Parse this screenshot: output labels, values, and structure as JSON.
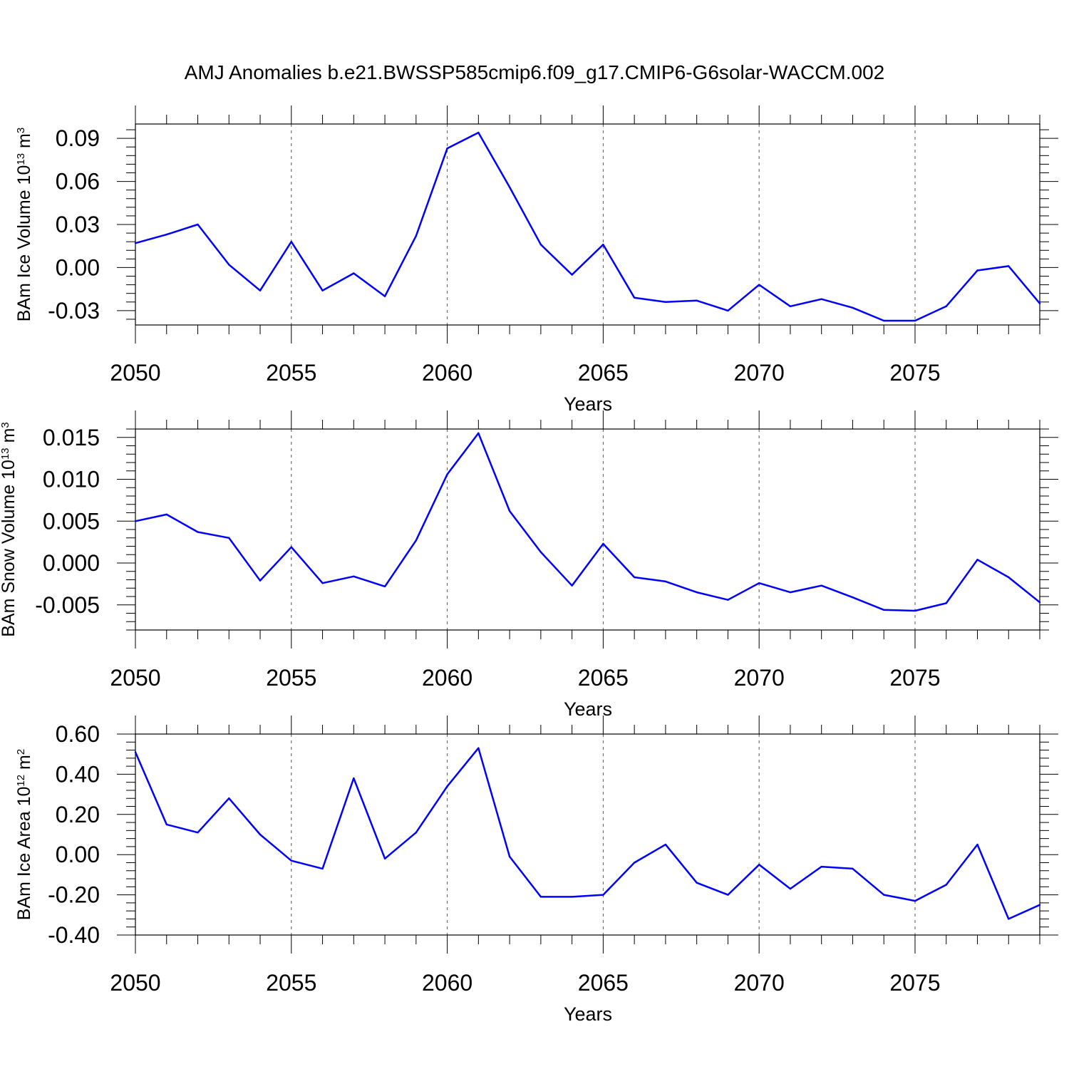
{
  "title": "AMJ Anomalies b.e21.BWSSP585cmip6.f09_g17.CMIP6-G6solar-WACCM.002",
  "colors": {
    "line": "#0000ff",
    "axis": "#000000",
    "grid": "#555555"
  },
  "chart_data": [
    {
      "type": "line",
      "title": "AMJ Anomalies b.e21.BWSSP585cmip6.f09_g17.CMIP6-G6solar-WACCM.002",
      "xlabel": "Years",
      "ylabel": {
        "text": "BAm Ice Volume 10",
        "sup": "13",
        "unit": " m",
        "unit_sup": "3"
      },
      "xlim": [
        2050,
        2079
      ],
      "ylim": [
        -0.04,
        0.1
      ],
      "x_ticks": [
        "2050",
        "2055",
        "2060",
        "2065",
        "2070",
        "2075"
      ],
      "x_tick_values": [
        2050,
        2055,
        2060,
        2065,
        2070,
        2075
      ],
      "y_ticks": [
        "0.09",
        "0.06",
        "0.03",
        "0.00",
        "-0.03"
      ],
      "y_tick_values": [
        0.09,
        0.06,
        0.03,
        0.0,
        -0.03
      ],
      "grid": "vertical dashed",
      "x": [
        2050,
        2051,
        2052,
        2053,
        2054,
        2055,
        2056,
        2057,
        2058,
        2059,
        2060,
        2061,
        2062,
        2063,
        2064,
        2065,
        2066,
        2067,
        2068,
        2069,
        2070,
        2071,
        2072,
        2073,
        2074,
        2075,
        2076,
        2077,
        2078,
        2079
      ],
      "values": [
        0.017,
        0.023,
        0.03,
        0.002,
        -0.016,
        0.018,
        -0.016,
        -0.004,
        -0.02,
        0.022,
        0.083,
        0.094,
        0.056,
        0.016,
        -0.005,
        0.016,
        -0.021,
        -0.024,
        -0.023,
        -0.03,
        -0.012,
        -0.027,
        -0.022,
        -0.028,
        -0.037,
        -0.037,
        -0.027,
        -0.002,
        0.001,
        -0.025
      ]
    },
    {
      "type": "line",
      "xlabel": "Years",
      "ylabel": {
        "text": "BAm Snow Volume 10",
        "sup": "13",
        "unit": " m",
        "unit_sup": "3"
      },
      "xlim": [
        2050,
        2079
      ],
      "ylim": [
        -0.008,
        0.016
      ],
      "x_ticks": [
        "2050",
        "2055",
        "2060",
        "2065",
        "2070",
        "2075"
      ],
      "x_tick_values": [
        2050,
        2055,
        2060,
        2065,
        2070,
        2075
      ],
      "y_ticks": [
        "0.015",
        "0.010",
        "0.005",
        "0.000",
        "-0.005"
      ],
      "y_tick_values": [
        0.015,
        0.01,
        0.005,
        0.0,
        -0.005
      ],
      "grid": "vertical dashed",
      "x": [
        2050,
        2051,
        2052,
        2053,
        2054,
        2055,
        2056,
        2057,
        2058,
        2059,
        2060,
        2061,
        2062,
        2063,
        2064,
        2065,
        2066,
        2067,
        2068,
        2069,
        2070,
        2071,
        2072,
        2073,
        2074,
        2075,
        2076,
        2077,
        2078,
        2079
      ],
      "values": [
        0.005,
        0.0058,
        0.0037,
        0.003,
        -0.0021,
        0.0019,
        -0.0024,
        -0.0016,
        -0.0028,
        0.0027,
        0.0106,
        0.0155,
        0.0062,
        0.0013,
        -0.0027,
        0.0023,
        -0.0017,
        -0.0022,
        -0.0035,
        -0.0044,
        -0.0024,
        -0.0035,
        -0.0027,
        -0.0041,
        -0.0056,
        -0.0057,
        -0.0048,
        0.0004,
        -0.0017,
        -0.0047
      ]
    },
    {
      "type": "line",
      "xlabel": "Years",
      "ylabel": {
        "text": "BAm Ice Area 10",
        "sup": "12",
        "unit": " m",
        "unit_sup": "2"
      },
      "xlim": [
        2050,
        2079
      ],
      "ylim": [
        -0.4,
        0.6
      ],
      "x_ticks": [
        "2050",
        "2055",
        "2060",
        "2065",
        "2070",
        "2075"
      ],
      "x_tick_values": [
        2050,
        2055,
        2060,
        2065,
        2070,
        2075
      ],
      "y_ticks": [
        "0.60",
        "0.40",
        "0.20",
        "0.00",
        "-0.20",
        "-0.40"
      ],
      "y_tick_values": [
        0.6,
        0.4,
        0.2,
        0.0,
        -0.2,
        -0.4
      ],
      "grid": "vertical dashed",
      "x": [
        2050,
        2051,
        2052,
        2053,
        2054,
        2055,
        2056,
        2057,
        2058,
        2059,
        2060,
        2061,
        2062,
        2063,
        2064,
        2065,
        2066,
        2067,
        2068,
        2069,
        2070,
        2071,
        2072,
        2073,
        2074,
        2075,
        2076,
        2077,
        2078,
        2079
      ],
      "values": [
        0.51,
        0.15,
        0.11,
        0.28,
        0.1,
        -0.03,
        -0.07,
        0.38,
        -0.02,
        0.11,
        0.34,
        0.53,
        -0.01,
        -0.21,
        -0.21,
        -0.2,
        -0.04,
        0.05,
        -0.14,
        -0.2,
        -0.05,
        -0.17,
        -0.06,
        -0.07,
        -0.2,
        -0.23,
        -0.15,
        0.05,
        -0.32,
        -0.25
      ]
    }
  ]
}
